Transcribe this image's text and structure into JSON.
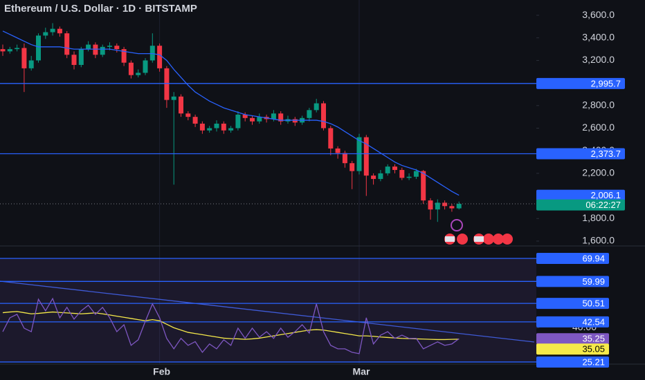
{
  "chart_data": [
    {
      "type": "candlestick",
      "title": "Ethereum / U.S. Dollar · 1D · BITSTAMP",
      "categories": [
        null,
        null,
        null,
        null,
        null,
        null,
        null,
        null,
        null,
        null,
        null,
        null,
        null,
        null,
        null,
        null,
        null,
        null,
        null,
        null,
        null,
        null,
        "Feb",
        null,
        null,
        null,
        null,
        null,
        null,
        null,
        null,
        null,
        null,
        null,
        null,
        null,
        null,
        null,
        null,
        null,
        null,
        null,
        null,
        null,
        null,
        null,
        null,
        null,
        null,
        null,
        "Mar",
        null,
        null,
        null,
        null,
        null,
        null,
        null,
        null,
        null,
        null,
        null,
        null,
        null,
        null
      ],
      "open": [
        3300,
        3280,
        3300,
        3310,
        3130,
        3200,
        3420,
        3450,
        3480,
        3440,
        3250,
        3160,
        3300,
        3340,
        3250,
        3320,
        3330,
        3300,
        3180,
        3070,
        3090,
        3200,
        3330,
        3130,
        2850,
        2880,
        2730,
        2700,
        2640,
        2580,
        2600,
        2640,
        2580,
        2600,
        2720,
        2690,
        2660,
        2700,
        2680,
        2730,
        2660,
        2680,
        2650,
        2690,
        2760,
        2820,
        2600,
        2420,
        2380,
        2290,
        2220,
        2520,
        2180,
        2150,
        2200,
        2260,
        2230,
        2160,
        2170,
        2220,
        1960,
        1880,
        1940,
        1910,
        1890
      ],
      "high": [
        3340,
        3320,
        3340,
        3350,
        3240,
        3440,
        3490,
        3530,
        3500,
        3460,
        3280,
        3320,
        3370,
        3360,
        3340,
        3360,
        3350,
        3320,
        3200,
        3120,
        3220,
        3440,
        3350,
        3150,
        2920,
        2900,
        2750,
        2720,
        2660,
        2620,
        2670,
        2660,
        2620,
        2750,
        2740,
        2710,
        2730,
        2720,
        2760,
        2750,
        2710,
        2700,
        2710,
        2780,
        2860,
        2840,
        2620,
        2440,
        2400,
        2310,
        2550,
        2540,
        2200,
        2230,
        2280,
        2280,
        2250,
        2200,
        2240,
        2230,
        1980,
        1970,
        1960,
        1930,
        1950
      ],
      "low": [
        3240,
        3260,
        3280,
        2920,
        3110,
        3180,
        3390,
        3420,
        3410,
        3220,
        3120,
        3140,
        3280,
        3220,
        3230,
        3290,
        3270,
        3150,
        3040,
        3050,
        3070,
        3180,
        3100,
        2780,
        2100,
        2700,
        2670,
        2610,
        2550,
        2560,
        2570,
        2550,
        2560,
        2580,
        2660,
        2630,
        2640,
        2650,
        2660,
        2630,
        2640,
        2620,
        2630,
        2660,
        2740,
        2580,
        2360,
        2330,
        2250,
        2060,
        2190,
        2000,
        2100,
        2130,
        2180,
        2200,
        2140,
        2140,
        2150,
        1930,
        1790,
        1770,
        1880,
        1860,
        1880
      ],
      "close": [
        3280,
        3300,
        3310,
        3130,
        3200,
        3420,
        3450,
        3480,
        3440,
        3250,
        3160,
        3300,
        3340,
        3250,
        3320,
        3330,
        3300,
        3180,
        3070,
        3090,
        3200,
        3330,
        3130,
        2850,
        2880,
        2730,
        2700,
        2640,
        2580,
        2600,
        2640,
        2580,
        2600,
        2720,
        2690,
        2660,
        2700,
        2680,
        2730,
        2660,
        2680,
        2650,
        2690,
        2760,
        2820,
        2600,
        2420,
        2380,
        2290,
        2220,
        2520,
        2180,
        2150,
        2200,
        2260,
        2230,
        2160,
        2170,
        2220,
        1960,
        1880,
        1940,
        1910,
        1890,
        1930
      ],
      "up_color": "#089981",
      "down_color": "#f23645",
      "ylim": [
        1563,
        3735
      ],
      "yticks": [
        {
          "value": 3600,
          "label": "3,600.0"
        },
        {
          "value": 3400,
          "label": "3,400.0"
        },
        {
          "value": 3200,
          "label": "3,200.0"
        },
        {
          "value": 2800,
          "label": "2,800.0"
        },
        {
          "value": 2600,
          "label": "2,600.0"
        },
        {
          "value": 2400,
          "label": "2,400.0"
        },
        {
          "value": 2200,
          "label": "2,200.0"
        },
        {
          "value": 1800,
          "label": "1,800.0"
        },
        {
          "value": 1600,
          "label": "1,600.0"
        }
      ],
      "hlines": [
        {
          "value": 2995.7,
          "label": "2,995.7"
        },
        {
          "value": 2373.7,
          "label": "2,373.7"
        }
      ],
      "hline_color": "#2962ff",
      "ma": {
        "color": "#2962ff",
        "last_label": "2,006.1",
        "values": [
          3460,
          3430,
          3400,
          3370,
          3340,
          3320,
          3320,
          3320,
          3320,
          3310,
          3300,
          3300,
          3300,
          3300,
          3300,
          3300,
          3290,
          3280,
          3270,
          3260,
          3260,
          3260,
          3250,
          3200,
          3120,
          3050,
          2980,
          2920,
          2880,
          2840,
          2810,
          2780,
          2760,
          2740,
          2720,
          2710,
          2700,
          2690,
          2680,
          2670,
          2670,
          2670,
          2670,
          2670,
          2670,
          2660,
          2640,
          2610,
          2570,
          2530,
          2490,
          2460,
          2420,
          2380,
          2340,
          2300,
          2270,
          2250,
          2230,
          2200,
          2160,
          2120,
          2080,
          2040,
          2006.1
        ]
      },
      "countdown": "06:22:27"
    },
    {
      "type": "line",
      "series": [
        {
          "color": "#7e57c2",
          "values": [
            38.3,
            44.3,
            45.8,
            39.8,
            38.3,
            52.3,
            47.3,
            52.6,
            44.3,
            48.8,
            43.7,
            47.3,
            49.7,
            45.8,
            48.8,
            44.3,
            38.3,
            41.3,
            32.4,
            34.8,
            42.8,
            50.3,
            44.3,
            35.4,
            30.9,
            35.4,
            32.4,
            34.0,
            29.4,
            33.0,
            30.9,
            34.8,
            32.4,
            39.8,
            35.4,
            39.8,
            35.9,
            38.3,
            35.4,
            39.8,
            35.9,
            38.3,
            41.3,
            37.7,
            50.3,
            38.3,
            32.4,
            30.9,
            30.9,
            29.4,
            28.8,
            44.3,
            33.0,
            36.8,
            38.3,
            35.4,
            36.8,
            35.4,
            35.4,
            30.9,
            32.4,
            33.9,
            32.4,
            33.0,
            35.25
          ]
        },
        {
          "color": "#f5e94a",
          "values": [
            46.5,
            46.8,
            47.0,
            46.5,
            46.0,
            46.2,
            46.5,
            46.8,
            46.6,
            46.4,
            46.2,
            46.0,
            46.2,
            46.4,
            46.0,
            45.5,
            45.0,
            44.5,
            44.0,
            43.5,
            43.0,
            43.5,
            43.0,
            41.5,
            40.0,
            39.0,
            38.0,
            37.5,
            37.0,
            36.5,
            36.0,
            35.5,
            35.3,
            35.2,
            35.0,
            35.2,
            35.5,
            36.0,
            36.5,
            37.0,
            37.5,
            38.0,
            38.5,
            39.0,
            39.2,
            39.0,
            38.5,
            38.0,
            37.5,
            37.0,
            36.5,
            36.5,
            36.3,
            36.0,
            35.8,
            35.6,
            35.4,
            35.3,
            35.2,
            35.1,
            35.0,
            34.9,
            34.9,
            35.0,
            35.05
          ]
        }
      ],
      "ylim": [
        24.3,
        75.0
      ],
      "yticks": [
        {
          "value": 40,
          "label": "40.00"
        }
      ],
      "hlines": [
        69.94,
        59.99,
        50.51,
        42.54,
        25.21
      ],
      "hline_color": "#2962ff"
    }
  ]
}
